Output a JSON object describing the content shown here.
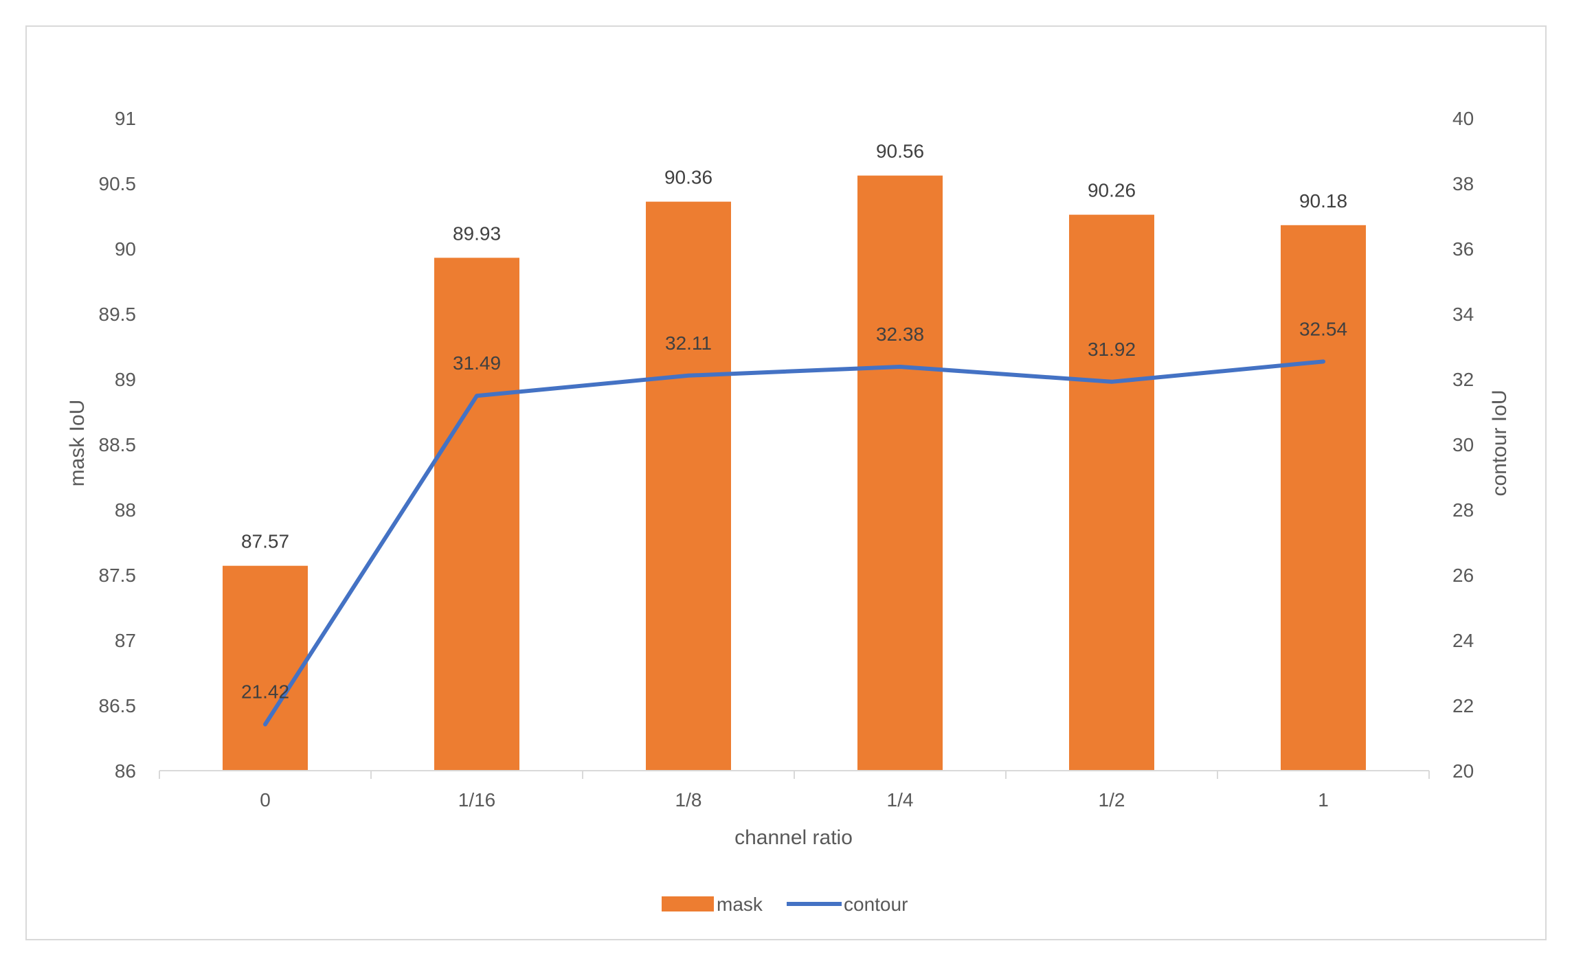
{
  "chart_data": {
    "type": "bar",
    "categories": [
      "0",
      "1/16",
      "1/8",
      "1/4",
      "1/2",
      "1"
    ],
    "series": [
      {
        "name": "mask",
        "kind": "bar",
        "axis": "left",
        "color": "#ED7D31",
        "values": [
          87.57,
          89.93,
          90.36,
          90.56,
          90.26,
          90.18
        ],
        "labels": [
          "87.57",
          "89.93",
          "90.36",
          "90.56",
          "90.26",
          "90.18"
        ]
      },
      {
        "name": "contour",
        "kind": "line",
        "axis": "right",
        "color": "#4472C4",
        "values": [
          21.42,
          31.49,
          32.11,
          32.38,
          31.92,
          32.54
        ],
        "labels": [
          "21.42",
          "31.49",
          "32.11",
          "32.38",
          "31.92",
          "32.54"
        ]
      }
    ],
    "xlabel": "channel ratio",
    "ylabel": "mask IoU",
    "y2label": "contour IoU",
    "ylim": [
      86,
      91
    ],
    "y2lim": [
      20,
      40
    ],
    "yticks": [
      "86",
      "86.5",
      "87",
      "87.5",
      "88",
      "88.5",
      "89",
      "89.5",
      "90",
      "90.5",
      "91"
    ],
    "y2ticks": [
      "20",
      "22",
      "24",
      "26",
      "28",
      "30",
      "32",
      "34",
      "36",
      "38",
      "40"
    ],
    "grid": false,
    "legend": "bottom-center"
  }
}
